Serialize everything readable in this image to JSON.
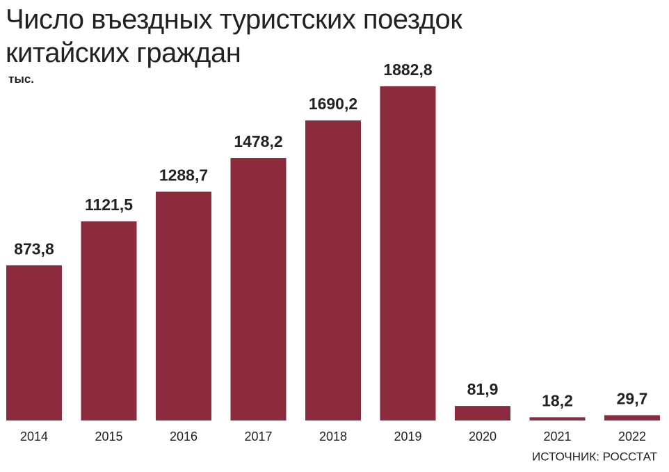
{
  "chart_data": {
    "type": "bar",
    "title": "Число въездных туристских поездок китайских граждан",
    "unit": "тыс.",
    "source": "ИСТОЧНИК: РОССТАТ",
    "categories": [
      "2014",
      "2015",
      "2016",
      "2017",
      "2018",
      "2019",
      "2020",
      "2021",
      "2022"
    ],
    "values": [
      873.8,
      1121.5,
      1288.7,
      1478.2,
      1690.2,
      1882.8,
      81.9,
      18.2,
      29.7
    ],
    "value_labels": [
      "873,8",
      "1121,5",
      "1288,7",
      "1478,2",
      "1690,2",
      "1882,8",
      "81,9",
      "18,2",
      "29,7"
    ],
    "color": "#8c2a3e"
  }
}
